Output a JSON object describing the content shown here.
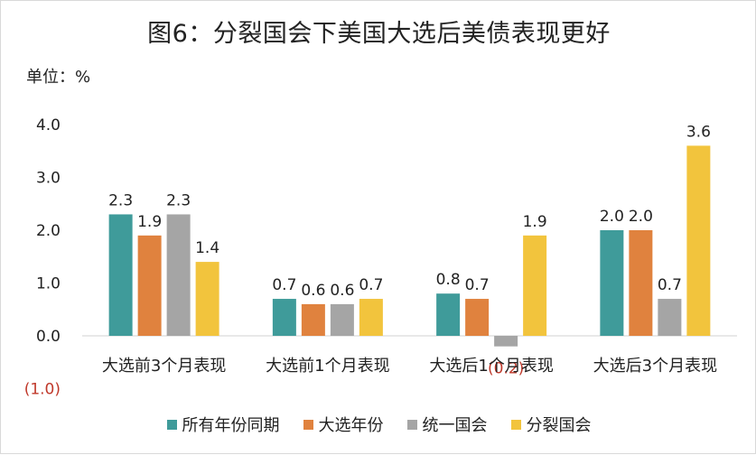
{
  "title": "图6：分裂国会下美国大选后美债表现更好",
  "unit_label": "单位：%",
  "colors": {
    "teal": "#3f9b9a",
    "orange": "#e0823e",
    "gray": "#a5a5a5",
    "yellow": "#f2c43d",
    "negative_label": "#c0392b",
    "axis": "#d9d9d9"
  },
  "legend": [
    {
      "name": "所有年份同期",
      "color": "#3f9b9a"
    },
    {
      "name": "大选年份",
      "color": "#e0823e"
    },
    {
      "name": "统一国会",
      "color": "#a5a5a5"
    },
    {
      "name": "分裂国会",
      "color": "#f2c43d"
    }
  ],
  "chart_data": {
    "type": "bar",
    "title": "图6：分裂国会下美国大选后美债表现更好",
    "ylabel": "单位：%",
    "ylim": [
      -1.0,
      4.0
    ],
    "yticks": [
      4.0,
      3.0,
      2.0,
      1.0,
      0.0,
      -1.0
    ],
    "ytick_labels": [
      "4.0",
      "3.0",
      "2.0",
      "1.0",
      "0.0",
      "(1.0)"
    ],
    "categories": [
      "大选前3个月表现",
      "大选前1个月表现",
      "大选后1个月表现",
      "大选后3个月表现"
    ],
    "series": [
      {
        "name": "所有年份同期",
        "values": [
          2.3,
          0.7,
          0.8,
          2.0
        ],
        "labels": [
          "2.3",
          "0.7",
          "0.8",
          "2.0"
        ]
      },
      {
        "name": "大选年份",
        "values": [
          1.9,
          0.6,
          0.7,
          2.0
        ],
        "labels": [
          "1.9",
          "0.6",
          "0.7",
          "2.0"
        ]
      },
      {
        "name": "统一国会",
        "values": [
          2.3,
          0.6,
          -0.2,
          0.7
        ],
        "labels": [
          "2.3",
          "0.6",
          "(0.2)",
          "0.7"
        ]
      },
      {
        "name": "分裂国会",
        "values": [
          1.4,
          0.7,
          1.9,
          3.6
        ],
        "labels": [
          "1.4",
          "0.7",
          "1.9",
          "3.6"
        ]
      }
    ],
    "legend_position": "bottom",
    "grid": false
  }
}
